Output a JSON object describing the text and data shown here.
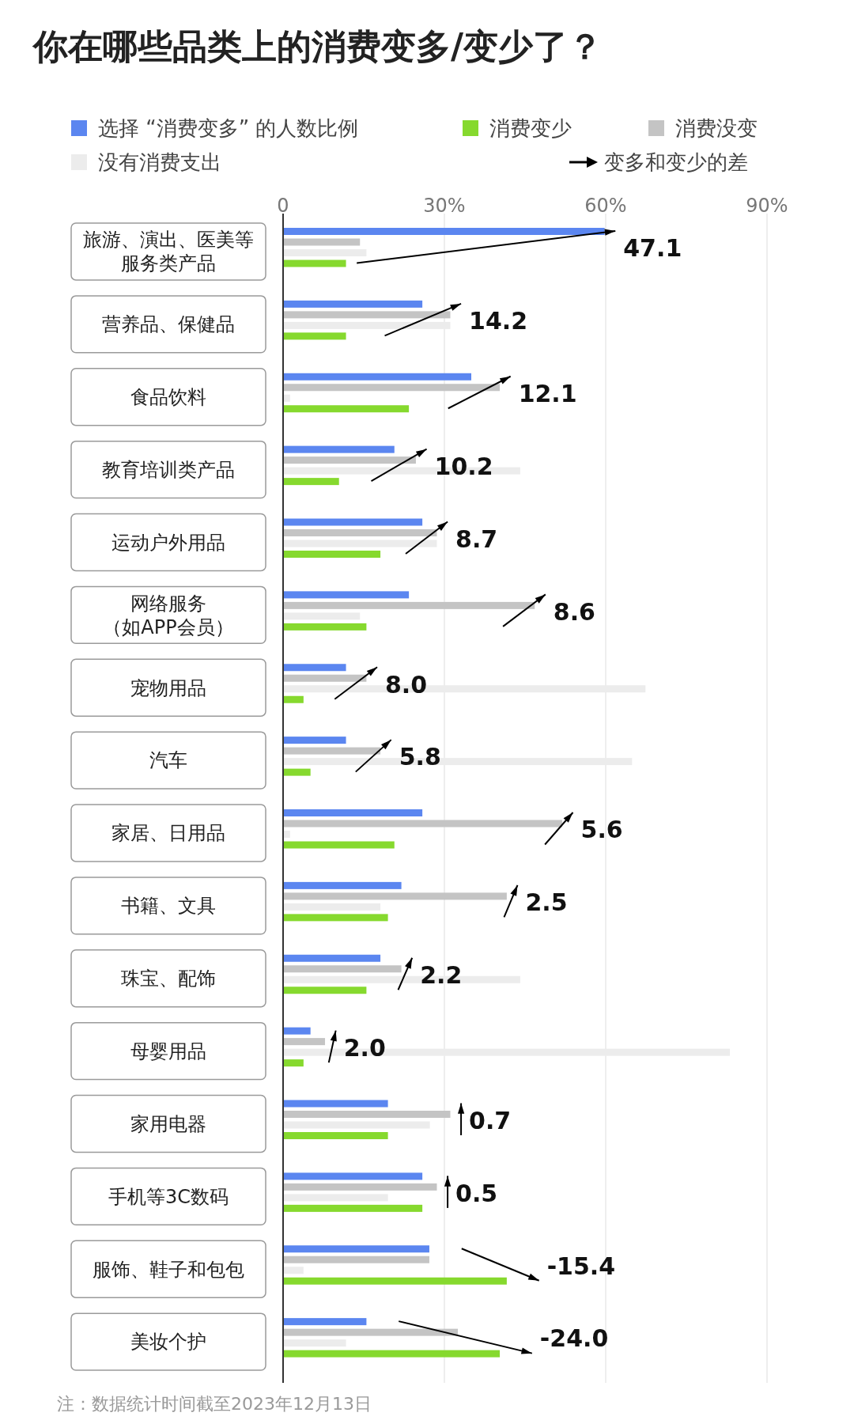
{
  "chart_data": {
    "type": "bar",
    "orientation": "horizontal",
    "title": "你在哪些品类上的消费变多/变少了？",
    "categories": [
      "旅游、演出、医美等服务类产品",
      "营养品、保健品",
      "食品饮料",
      "教育培训类产品",
      "运动户外用品",
      "网络服务（如APP会员）",
      "宠物用品",
      "汽车",
      "家居、日用品",
      "书籍、文具",
      "珠宝、配饰",
      "母婴用品",
      "家用电器",
      "手机等3C数码",
      "服饰、鞋子和包包",
      "美妆个护"
    ],
    "series": [
      {
        "name": "选择 “消费变多” 的人数比例",
        "color": "#5b86f0",
        "values": [
          59.8,
          25.9,
          35.0,
          20.7,
          25.9,
          23.4,
          11.7,
          11.7,
          25.9,
          22.0,
          18.1,
          5.1,
          19.5,
          25.9,
          27.2,
          15.5
        ]
      },
      {
        "name": "消费变少",
        "color": "#86d92e",
        "values": [
          11.7,
          11.7,
          23.4,
          10.4,
          18.1,
          15.5,
          3.8,
          5.1,
          20.7,
          19.5,
          15.5,
          3.8,
          19.5,
          25.9,
          41.6,
          40.3
        ]
      },
      {
        "name": "消费没变",
        "color": "#c4c4c4",
        "values": [
          14.3,
          31.1,
          40.3,
          24.7,
          28.6,
          46.8,
          15.5,
          18.1,
          51.9,
          41.6,
          22.0,
          7.8,
          31.1,
          28.6,
          27.2,
          32.5
        ]
      },
      {
        "name": "没有消费支出",
        "color": "#ececec",
        "values": [
          15.5,
          31.1,
          1.3,
          44.1,
          28.6,
          14.3,
          67.4,
          64.9,
          1.3,
          18.1,
          44.1,
          83.1,
          27.3,
          19.5,
          3.8,
          11.7
        ]
      }
    ],
    "xlim": [
      0,
      90
    ],
    "xticks": [
      0,
      {
        "value": 30,
        "label": "30%"
      },
      {
        "value": 60,
        "label": "60%"
      },
      {
        "value": 90,
        "label": "90%"
      }
    ],
    "grid": "x",
    "legend": "top",
    "annotations": [
      "变多和变少的差",
      "注：数据统计时间截至2023年12月13日",
      "47.1",
      "14.2",
      "12.1",
      "10.2",
      "8.7",
      "8.6",
      "8.0",
      "5.8",
      "5.6",
      "2.5",
      "2.2",
      "2.0",
      "0.7",
      "0.5",
      "-15.4",
      "-24.0"
    ]
  }
}
